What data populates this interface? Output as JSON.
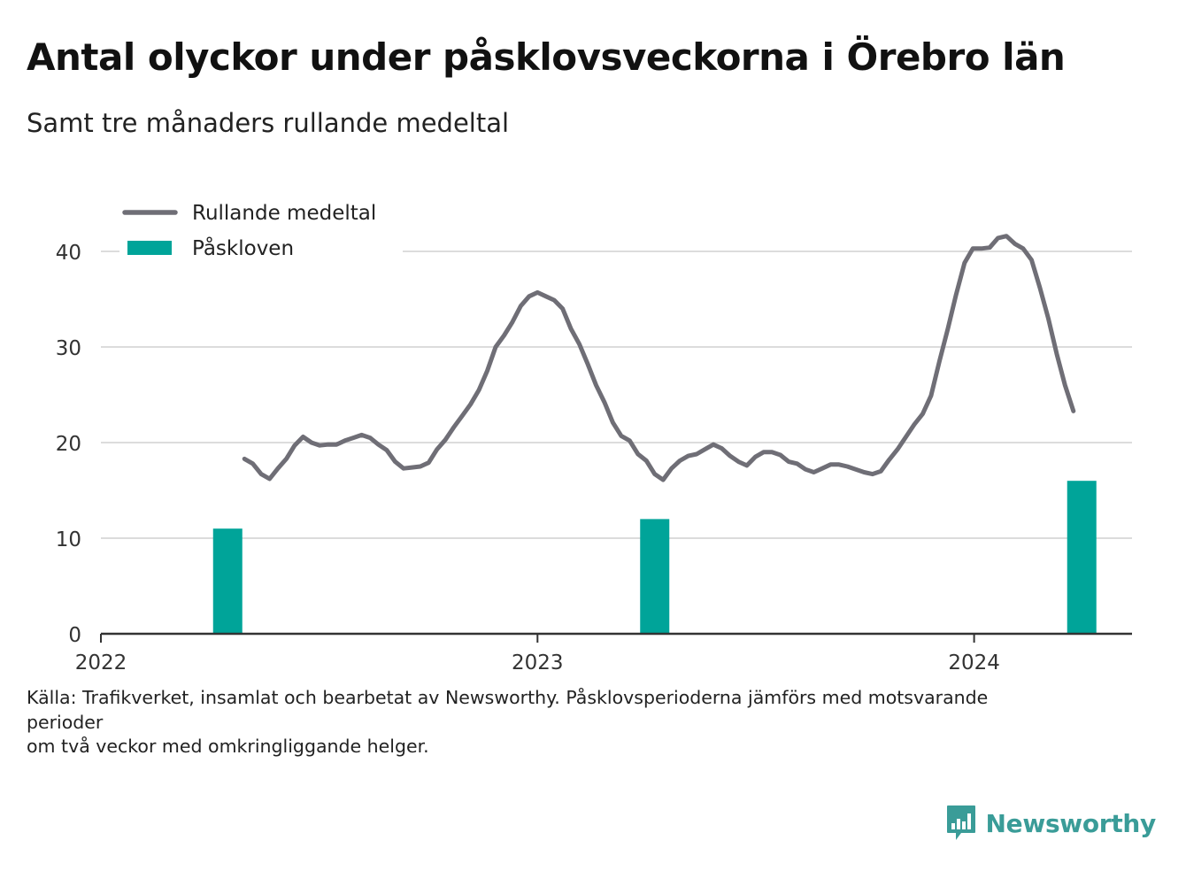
{
  "title": "Antal olyckor under påsklovsveckorna i Örebro län",
  "subtitle": "Samt tre månaders rullande medeltal",
  "source_lines": [
    "Källa: Trafikverket, insamlat och bearbetat av Newsworthy. Påsklovsperioderna jämförs med motsvarande",
    "perioder",
    "om två veckor med omkringliggande helger."
  ],
  "brand": {
    "name": "Newsworthy",
    "color": "#3a9c98"
  },
  "chart_data": {
    "type": "bar",
    "title": "Antal olyckor under påsklovsveckorna i Örebro län",
    "subtitle": "Samt tre månaders rullande medeltal",
    "x_axis": {
      "type": "date",
      "ticks": [
        "2022",
        "2023",
        "2024"
      ],
      "range": [
        "2022-01-01",
        "2024-05-12"
      ]
    },
    "y_axis": {
      "range": [
        0,
        45
      ],
      "ticks": [
        0,
        10,
        20,
        30,
        40
      ]
    },
    "grid": true,
    "legend": {
      "placement": "top-left",
      "entries": [
        "Rullande medeltal",
        "Påskloven"
      ]
    },
    "colors": {
      "line": "#6f6e76",
      "bars": "#00a499",
      "grid": "#dcdcdc",
      "axis": "#333333"
    },
    "series": [
      {
        "name": "Påskloven",
        "type": "bar",
        "points": [
          {
            "x": "2022-04-17",
            "y": 11
          },
          {
            "x": "2023-04-09",
            "y": 12
          },
          {
            "x": "2024-03-31",
            "y": 16
          }
        ]
      },
      {
        "name": "Rullande medeltal",
        "type": "line",
        "points": [
          {
            "x": "2022-05-01",
            "y": 18.3
          },
          {
            "x": "2022-05-08",
            "y": 17.8
          },
          {
            "x": "2022-05-15",
            "y": 16.7
          },
          {
            "x": "2022-05-22",
            "y": 16.2
          },
          {
            "x": "2022-05-29",
            "y": 17.3
          },
          {
            "x": "2022-06-05",
            "y": 18.3
          },
          {
            "x": "2022-06-12",
            "y": 19.7
          },
          {
            "x": "2022-06-19",
            "y": 20.6
          },
          {
            "x": "2022-06-26",
            "y": 20.0
          },
          {
            "x": "2022-07-03",
            "y": 19.7
          },
          {
            "x": "2022-07-10",
            "y": 19.8
          },
          {
            "x": "2022-07-17",
            "y": 19.8
          },
          {
            "x": "2022-07-24",
            "y": 20.2
          },
          {
            "x": "2022-07-31",
            "y": 20.5
          },
          {
            "x": "2022-08-07",
            "y": 20.8
          },
          {
            "x": "2022-08-14",
            "y": 20.5
          },
          {
            "x": "2022-08-21",
            "y": 19.8
          },
          {
            "x": "2022-08-28",
            "y": 19.2
          },
          {
            "x": "2022-09-04",
            "y": 18.0
          },
          {
            "x": "2022-09-11",
            "y": 17.3
          },
          {
            "x": "2022-09-18",
            "y": 17.4
          },
          {
            "x": "2022-09-25",
            "y": 17.5
          },
          {
            "x": "2022-10-02",
            "y": 17.9
          },
          {
            "x": "2022-10-09",
            "y": 19.3
          },
          {
            "x": "2022-10-16",
            "y": 20.3
          },
          {
            "x": "2022-10-23",
            "y": 21.6
          },
          {
            "x": "2022-10-30",
            "y": 22.8
          },
          {
            "x": "2022-11-06",
            "y": 24.0
          },
          {
            "x": "2022-11-13",
            "y": 25.5
          },
          {
            "x": "2022-11-20",
            "y": 27.5
          },
          {
            "x": "2022-11-27",
            "y": 30.0
          },
          {
            "x": "2022-12-04",
            "y": 31.2
          },
          {
            "x": "2022-12-11",
            "y": 32.6
          },
          {
            "x": "2022-12-18",
            "y": 34.3
          },
          {
            "x": "2022-12-25",
            "y": 35.3
          },
          {
            "x": "2023-01-01",
            "y": 35.7
          },
          {
            "x": "2023-01-08",
            "y": 35.3
          },
          {
            "x": "2023-01-15",
            "y": 34.9
          },
          {
            "x": "2023-01-22",
            "y": 34.0
          },
          {
            "x": "2023-01-29",
            "y": 31.9
          },
          {
            "x": "2023-02-05",
            "y": 30.3
          },
          {
            "x": "2023-02-12",
            "y": 28.2
          },
          {
            "x": "2023-02-19",
            "y": 26.0
          },
          {
            "x": "2023-02-26",
            "y": 24.2
          },
          {
            "x": "2023-03-05",
            "y": 22.1
          },
          {
            "x": "2023-03-12",
            "y": 20.7
          },
          {
            "x": "2023-03-19",
            "y": 20.2
          },
          {
            "x": "2023-03-26",
            "y": 18.8
          },
          {
            "x": "2023-04-02",
            "y": 18.1
          },
          {
            "x": "2023-04-09",
            "y": 16.7
          },
          {
            "x": "2023-04-16",
            "y": 16.1
          },
          {
            "x": "2023-04-23",
            "y": 17.3
          },
          {
            "x": "2023-04-30",
            "y": 18.1
          },
          {
            "x": "2023-05-07",
            "y": 18.6
          },
          {
            "x": "2023-05-14",
            "y": 18.8
          },
          {
            "x": "2023-05-21",
            "y": 19.3
          },
          {
            "x": "2023-05-28",
            "y": 19.8
          },
          {
            "x": "2023-06-04",
            "y": 19.4
          },
          {
            "x": "2023-06-11",
            "y": 18.6
          },
          {
            "x": "2023-06-18",
            "y": 18.0
          },
          {
            "x": "2023-06-25",
            "y": 17.6
          },
          {
            "x": "2023-07-02",
            "y": 18.5
          },
          {
            "x": "2023-07-09",
            "y": 19.0
          },
          {
            "x": "2023-07-16",
            "y": 19.0
          },
          {
            "x": "2023-07-23",
            "y": 18.7
          },
          {
            "x": "2023-07-30",
            "y": 18.0
          },
          {
            "x": "2023-08-06",
            "y": 17.8
          },
          {
            "x": "2023-08-13",
            "y": 17.2
          },
          {
            "x": "2023-08-20",
            "y": 16.9
          },
          {
            "x": "2023-08-27",
            "y": 17.3
          },
          {
            "x": "2023-09-03",
            "y": 17.7
          },
          {
            "x": "2023-09-10",
            "y": 17.7
          },
          {
            "x": "2023-09-17",
            "y": 17.5
          },
          {
            "x": "2023-09-24",
            "y": 17.2
          },
          {
            "x": "2023-10-01",
            "y": 16.9
          },
          {
            "x": "2023-10-08",
            "y": 16.7
          },
          {
            "x": "2023-10-15",
            "y": 17.0
          },
          {
            "x": "2023-10-22",
            "y": 18.2
          },
          {
            "x": "2023-10-29",
            "y": 19.3
          },
          {
            "x": "2023-11-05",
            "y": 20.6
          },
          {
            "x": "2023-11-12",
            "y": 21.9
          },
          {
            "x": "2023-11-19",
            "y": 23.0
          },
          {
            "x": "2023-11-26",
            "y": 24.9
          },
          {
            "x": "2023-12-03",
            "y": 28.5
          },
          {
            "x": "2023-12-10",
            "y": 31.9
          },
          {
            "x": "2023-12-17",
            "y": 35.5
          },
          {
            "x": "2023-12-24",
            "y": 38.8
          },
          {
            "x": "2023-12-31",
            "y": 40.3
          },
          {
            "x": "2024-01-07",
            "y": 40.3
          },
          {
            "x": "2024-01-14",
            "y": 40.4
          },
          {
            "x": "2024-01-21",
            "y": 41.4
          },
          {
            "x": "2024-01-28",
            "y": 41.6
          },
          {
            "x": "2024-02-04",
            "y": 40.8
          },
          {
            "x": "2024-02-11",
            "y": 40.3
          },
          {
            "x": "2024-02-18",
            "y": 39.1
          },
          {
            "x": "2024-02-25",
            "y": 36.2
          },
          {
            "x": "2024-03-03",
            "y": 33.0
          },
          {
            "x": "2024-03-10",
            "y": 29.3
          },
          {
            "x": "2024-03-17",
            "y": 26.0
          },
          {
            "x": "2024-03-24",
            "y": 23.3
          }
        ]
      }
    ]
  }
}
